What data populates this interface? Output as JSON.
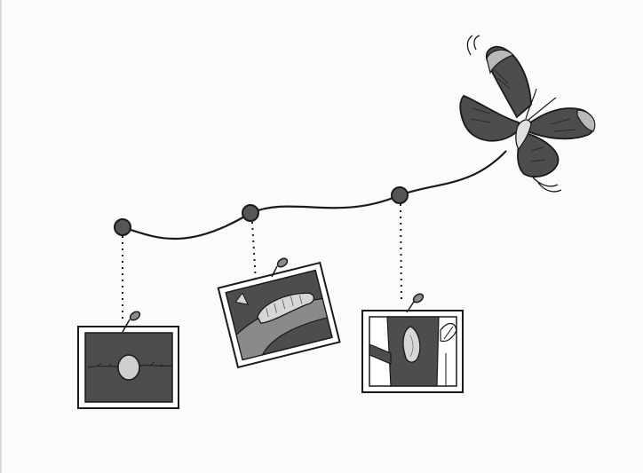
{
  "colors": {
    "background": "#fbfbfb",
    "ink": "#1a1a1a",
    "dark_fill": "#4d4d4d",
    "mid_fill": "#8a8a8a",
    "light_fill": "#c9c9c9"
  },
  "stages": [
    {
      "name": "egg",
      "icon": "egg-on-leaf-icon"
    },
    {
      "name": "caterpillar",
      "icon": "caterpillar-on-leaf-icon"
    },
    {
      "name": "chrysalis",
      "icon": "chrysalis-on-branch-icon"
    },
    {
      "name": "butterfly",
      "icon": "butterfly-icon"
    }
  ]
}
